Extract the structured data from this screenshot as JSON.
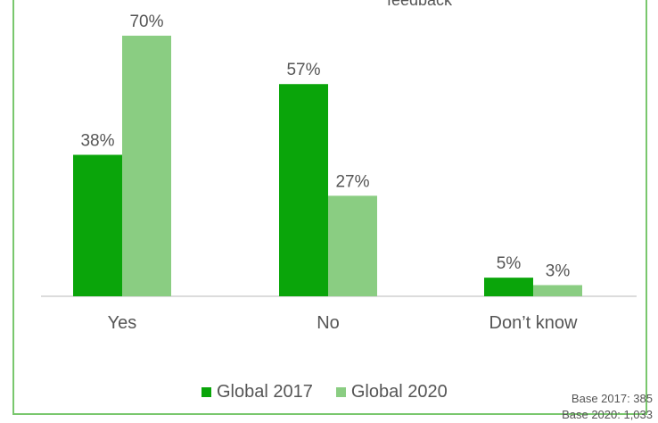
{
  "chart_data": {
    "type": "bar",
    "title_fragment": "feedback",
    "categories": [
      "Yes",
      "No",
      "Don’t know"
    ],
    "series": [
      {
        "name": "Global 2017",
        "color": "#0aa50a",
        "values": [
          38,
          57,
          5
        ],
        "labels": [
          "38%",
          "57%",
          "5%"
        ]
      },
      {
        "name": "Global 2020",
        "color": "#8acd82",
        "values": [
          70,
          27,
          3
        ],
        "labels": [
          "70%",
          "27%",
          "3%"
        ]
      }
    ],
    "ylim": [
      0,
      70
    ],
    "grid": false,
    "legend_position": "bottom"
  },
  "base_notes": [
    "Base 2017: 385",
    "Base 2020: 1,033"
  ]
}
